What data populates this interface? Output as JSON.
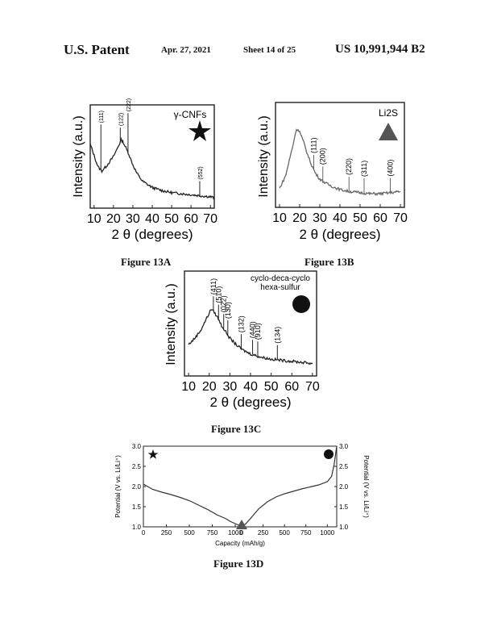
{
  "header": {
    "left": "U.S. Patent",
    "date": "Apr. 27, 2021",
    "sheet": "Sheet 14 of 25",
    "number": "US 10,991,944 B2"
  },
  "figures": {
    "a": "Figure 13A",
    "b": "Figure 13B",
    "c": "Figure 13C",
    "d": "Figure 13D"
  },
  "chart_data": [
    {
      "id": "13A",
      "type": "line",
      "ylabel": "Intensity (a.u.)",
      "xlabel": "2 θ (degrees)",
      "xticks": [
        10,
        20,
        30,
        40,
        50,
        60,
        70
      ],
      "xlim": [
        8,
        72
      ],
      "legend": "γ-CNFs",
      "marker": "star",
      "color": "#222222",
      "peaks": [
        {
          "label": "(111)",
          "x": 13.5
        },
        {
          "label": "(122)",
          "x": 23.5
        },
        {
          "label": "(222)",
          "x": 27.5
        },
        {
          "label": "(552)",
          "x": 64.5
        }
      ],
      "series": [
        {
          "x": [
            8,
            12,
            14,
            16,
            18,
            20,
            22,
            24,
            25,
            26,
            28,
            30,
            32,
            35,
            40,
            45,
            50,
            55,
            60,
            65,
            70,
            72
          ],
          "y": [
            0.62,
            0.4,
            0.36,
            0.4,
            0.45,
            0.5,
            0.58,
            0.66,
            0.64,
            0.6,
            0.52,
            0.42,
            0.34,
            0.26,
            0.2,
            0.17,
            0.15,
            0.14,
            0.13,
            0.12,
            0.11,
            0.1
          ]
        }
      ]
    },
    {
      "id": "13B",
      "type": "line",
      "ylabel": "Intensity (a.u.)",
      "xlabel": "2 θ (degrees)",
      "xticks": [
        10,
        20,
        30,
        40,
        50,
        60,
        70
      ],
      "xlim": [
        8,
        72
      ],
      "legend": "Li2S",
      "marker": "triangle",
      "color": "#666666",
      "peaks": [
        {
          "label": "(111)",
          "x": 27
        },
        {
          "label": "(200)",
          "x": 31.5
        },
        {
          "label": "(220)",
          "x": 44.5
        },
        {
          "label": "(311)",
          "x": 52
        },
        {
          "label": "(400)",
          "x": 65
        }
      ],
      "series": [
        {
          "x": [
            10,
            13,
            15,
            17,
            18,
            19,
            20,
            22,
            24,
            26,
            28,
            30,
            33,
            36,
            40,
            45,
            50,
            55,
            60,
            65,
            70
          ],
          "y": [
            0.18,
            0.3,
            0.46,
            0.62,
            0.72,
            0.75,
            0.72,
            0.62,
            0.5,
            0.4,
            0.32,
            0.27,
            0.23,
            0.2,
            0.17,
            0.15,
            0.14,
            0.13,
            0.13,
            0.14,
            0.15
          ]
        }
      ]
    },
    {
      "id": "13C",
      "type": "line",
      "ylabel": "Intensity (a.u.)",
      "xlabel": "2 θ (degrees)",
      "xticks": [
        10,
        20,
        30,
        40,
        50,
        60,
        70
      ],
      "xlim": [
        8,
        72
      ],
      "legend": [
        "cyclo-deca-cyclo",
        "hexa-sulfur"
      ],
      "marker": "circle",
      "color": "#222222",
      "peaks": [
        {
          "label": "(411)",
          "x": 22
        },
        {
          "label": "(510)",
          "x": 24.5
        },
        {
          "label": "(022)",
          "x": 27
        },
        {
          "label": "(130)",
          "x": 29
        },
        {
          "label": "(132)",
          "x": 35.5
        },
        {
          "label": "(440)",
          "x": 41
        },
        {
          "label": "(910)",
          "x": 43.5
        },
        {
          "label": "(134)",
          "x": 53
        }
      ],
      "series": [
        {
          "x": [
            10,
            13,
            16,
            18,
            20,
            21,
            22,
            24,
            26,
            28,
            30,
            33,
            36,
            40,
            45,
            50,
            55,
            60,
            65,
            70
          ],
          "y": [
            0.3,
            0.36,
            0.44,
            0.52,
            0.6,
            0.64,
            0.62,
            0.56,
            0.48,
            0.42,
            0.36,
            0.3,
            0.25,
            0.21,
            0.18,
            0.16,
            0.15,
            0.14,
            0.13,
            0.12
          ]
        }
      ]
    },
    {
      "id": "13D",
      "type": "line",
      "ylabel_left": "Potential (V vs. Li/Li⁺)",
      "ylabel_right": "Potential (V vs. Li/Li⁺)",
      "xlabel": "Capacity (mAh/g)",
      "xtick_labels": [
        "0",
        "250",
        "500",
        "750",
        "1000",
        "0",
        "250",
        "500",
        "750",
        "1000"
      ],
      "yticks": [
        "1.0",
        "1.5",
        "2.0",
        "2.5",
        "3.0"
      ],
      "ylim": [
        1.0,
        3.0
      ],
      "markers": [
        "star",
        "triangle",
        "circle"
      ],
      "color": "#333333",
      "series": [
        {
          "x": [
            0,
            100,
            200,
            300,
            400,
            500,
            600,
            700,
            800,
            900,
            950,
            1000,
            1050,
            1070
          ],
          "y": [
            2.06,
            1.93,
            1.86,
            1.8,
            1.73,
            1.65,
            1.54,
            1.43,
            1.3,
            1.2,
            1.13,
            1.08,
            1.03,
            1.0
          ]
        },
        {
          "x": [
            0,
            50,
            100,
            200,
            300,
            400,
            500,
            600,
            700,
            800,
            900,
            1000,
            1050,
            1080,
            1100,
            1110
          ],
          "y": [
            1.0,
            1.08,
            1.2,
            1.45,
            1.62,
            1.74,
            1.82,
            1.88,
            1.94,
            1.99,
            2.04,
            2.12,
            2.25,
            2.55,
            2.85,
            3.0
          ]
        }
      ]
    }
  ]
}
